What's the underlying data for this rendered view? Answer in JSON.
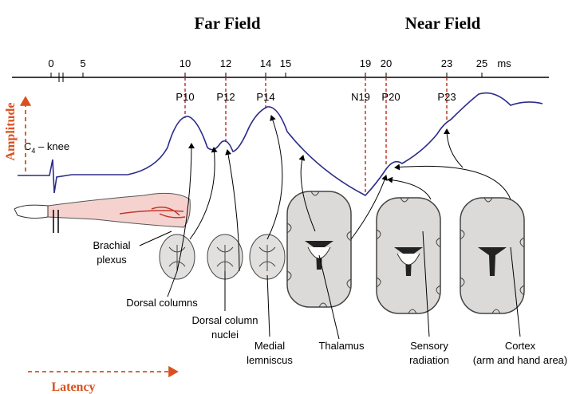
{
  "header": {
    "far_field": "Far Field",
    "near_field": "Near Field"
  },
  "timeline": {
    "ticks": [
      "0",
      "5",
      "10",
      "12",
      "14",
      "15",
      "19",
      "20",
      "23",
      "25"
    ],
    "unit": "ms"
  },
  "peaks": [
    "P10",
    "P12",
    "P14",
    "N19",
    "P20",
    "P23"
  ],
  "stimulus": {
    "base": "C",
    "sub": "4",
    "rest": " – knee"
  },
  "axes": {
    "amplitude": "Amplitude",
    "latency": "Latency"
  },
  "structures": {
    "brachial_plexus": [
      "Brachial",
      "plexus"
    ],
    "dorsal_columns": [
      "Dorsal columns"
    ],
    "dorsal_column_nuclei": [
      "Dorsal column",
      "nuclei"
    ],
    "medial_lemniscus": [
      "Medial",
      "lemniscus"
    ],
    "thalamus": [
      "Thalamus"
    ],
    "sensory_radiation": [
      "Sensory",
      "radiation"
    ],
    "cortex": [
      "Cortex",
      "(arm and hand area)"
    ]
  }
}
